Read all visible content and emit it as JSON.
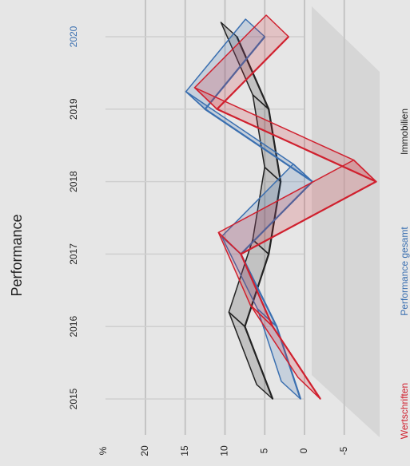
{
  "chart_data": {
    "type": "line3d",
    "title": "Performance",
    "y_axis_label": "%",
    "categories": [
      "2015",
      "2016",
      "2017",
      "2018",
      "2019",
      "2020"
    ],
    "highlight_category": 5,
    "highlight_color": "#3a6fb0",
    "series": [
      {
        "name": "Wertschriften",
        "color": "#d0202e",
        "values": [
          -2,
          4,
          8,
          -9,
          11,
          2
        ]
      },
      {
        "name": "Performance gesamt",
        "color": "#3a6fb0",
        "values": [
          0.5,
          3.5,
          8,
          -1,
          12.5,
          5
        ]
      },
      {
        "name": "Immobilien",
        "color": "#222222",
        "values": [
          4,
          7.5,
          4.5,
          3,
          4.5,
          8.5
        ]
      }
    ],
    "ylim": [
      -10,
      20
    ],
    "yticks": [
      -5,
      0,
      5,
      10,
      15,
      20
    ],
    "grid": true
  }
}
